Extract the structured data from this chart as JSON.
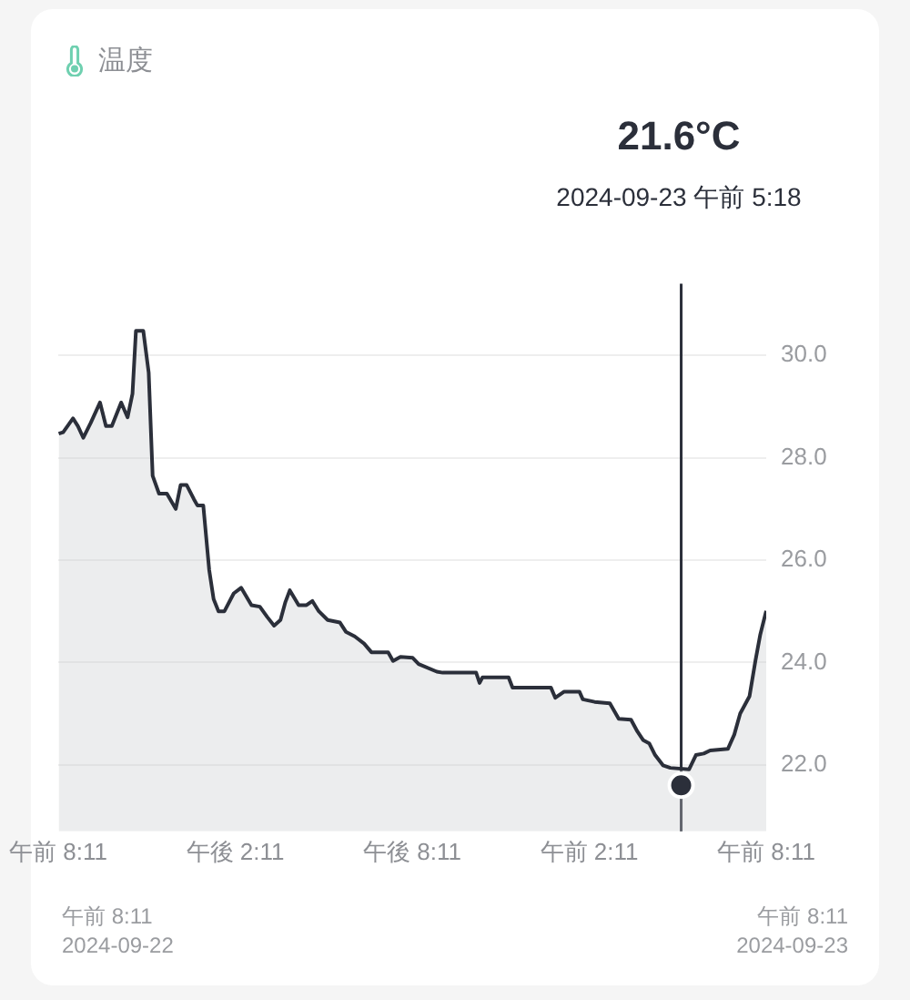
{
  "chart_data": {
    "type": "area",
    "title": "温度",
    "x": [
      "2024-09-22T08:12",
      "2024-09-22T08:21",
      "2024-09-22T08:41",
      "2024-09-22T08:51",
      "2024-09-22T09:02",
      "2024-09-22T09:17",
      "2024-09-22T09:36",
      "2024-09-22T09:48",
      "2024-09-22T10:00",
      "2024-09-22T10:19",
      "2024-09-22T10:32",
      "2024-09-22T10:42",
      "2024-09-22T10:49",
      "2024-09-22T11:04",
      "2024-09-22T11:15",
      "2024-09-22T11:23",
      "2024-09-22T11:36",
      "2024-09-22T11:52",
      "2024-09-22T12:10",
      "2024-09-22T12:20",
      "2024-09-22T12:32",
      "2024-09-22T12:47",
      "2024-09-22T12:54",
      "2024-09-22T13:06",
      "2024-09-22T13:18",
      "2024-09-22T13:27",
      "2024-09-22T13:37",
      "2024-09-22T13:49",
      "2024-09-22T14:08",
      "2024-09-22T14:23",
      "2024-09-22T14:44",
      "2024-09-22T15:01",
      "2024-09-22T15:16",
      "2024-09-22T15:30",
      "2024-09-22T15:43",
      "2024-09-22T15:53",
      "2024-09-22T16:02",
      "2024-09-22T16:20",
      "2024-09-22T16:36",
      "2024-09-22T16:48",
      "2024-09-22T17:01",
      "2024-09-22T17:19",
      "2024-09-22T17:44",
      "2024-09-22T17:56",
      "2024-09-22T18:14",
      "2024-09-22T18:33",
      "2024-09-22T18:48",
      "2024-09-22T19:22",
      "2024-09-22T19:32",
      "2024-09-22T19:47",
      "2024-09-22T20:12",
      "2024-09-22T20:24",
      "2024-09-22T21:01",
      "2024-09-22T21:13",
      "2024-09-22T22:21",
      "2024-09-22T22:28",
      "2024-09-22T22:34",
      "2024-09-22T23:27",
      "2024-09-22T23:35",
      "2024-09-23T00:53",
      "2024-09-23T01:02",
      "2024-09-23T01:20",
      "2024-09-23T01:51",
      "2024-09-23T01:58",
      "2024-09-23T02:22",
      "2024-09-23T02:53",
      "2024-09-23T03:11",
      "2024-09-23T03:36",
      "2024-09-23T03:49",
      "2024-09-23T04:01",
      "2024-09-23T04:13",
      "2024-09-23T04:25",
      "2024-09-23T04:41",
      "2024-09-23T04:56",
      "2024-09-23T05:34",
      "2024-09-23T05:48",
      "2024-09-23T06:04",
      "2024-09-23T06:17",
      "2024-09-23T06:53",
      "2024-09-23T07:06",
      "2024-09-23T07:18",
      "2024-09-23T07:37",
      "2024-09-23T07:49",
      "2024-09-23T07:59",
      "2024-09-23T08:11"
    ],
    "series": [
      {
        "color": "#2b2f3a",
        "values": [
          28.47,
          28.5,
          28.77,
          28.62,
          28.39,
          28.68,
          29.08,
          28.62,
          28.62,
          29.08,
          28.79,
          29.25,
          30.48,
          30.48,
          29.66,
          27.65,
          27.3,
          27.3,
          27.0,
          27.47,
          27.47,
          27.19,
          27.07,
          27.07,
          25.81,
          25.24,
          25.0,
          25.0,
          25.35,
          25.46,
          25.12,
          25.09,
          24.89,
          24.72,
          24.83,
          25.18,
          25.41,
          25.12,
          25.12,
          25.2,
          25.0,
          24.83,
          24.78,
          24.6,
          24.51,
          24.37,
          24.2,
          24.2,
          24.03,
          24.11,
          24.09,
          23.97,
          23.82,
          23.8,
          23.8,
          23.6,
          23.71,
          23.71,
          23.51,
          23.51,
          23.31,
          23.43,
          23.43,
          23.28,
          23.23,
          23.2,
          22.9,
          22.88,
          22.65,
          22.48,
          22.42,
          22.19,
          21.99,
          21.94,
          21.91,
          22.19,
          22.22,
          22.28,
          22.31,
          22.59,
          23.0,
          23.34,
          24.03,
          24.55,
          25.01
        ]
      },
      {
        "type": "scatter",
        "marker": "circle",
        "color": "#2b2f3a",
        "x": [
          "2024-09-23T05:18"
        ],
        "values": [
          21.6
        ]
      }
    ],
    "xlim": [
      "2024-09-22T08:11",
      "2024-09-23T08:11"
    ],
    "xticks": [
      {
        "value": "2024-09-22T08:11",
        "label": "午前 8:11"
      },
      {
        "value": "2024-09-22T14:11",
        "label": "午後 2:11"
      },
      {
        "value": "2024-09-22T20:11",
        "label": "午後 8:11"
      },
      {
        "value": "2024-09-23T02:11",
        "label": "午前 2:11"
      },
      {
        "value": "2024-09-23T08:11",
        "label": "午前 8:11"
      }
    ],
    "ylim": [
      20.7,
      31.4
    ],
    "yticks": [
      {
        "value": 22,
        "label": "22.0"
      },
      {
        "value": 24,
        "label": "24.0"
      },
      {
        "value": 26,
        "label": "26.0"
      },
      {
        "value": 28,
        "label": "28.0"
      },
      {
        "value": 30,
        "label": "30.0"
      }
    ],
    "grid": "y",
    "legend": false,
    "marker": "none",
    "line_style": "solid",
    "ref_lines": [
      {
        "axis": "x",
        "value": "2024-09-23T05:18",
        "color": "#2b2f3a"
      }
    ],
    "annotations": [
      "21.6°C",
      "2024-09-23 午前 5:18",
      "午前 8:11",
      "2024-09-22",
      "午前 8:11",
      "2024-09-23"
    ]
  }
}
